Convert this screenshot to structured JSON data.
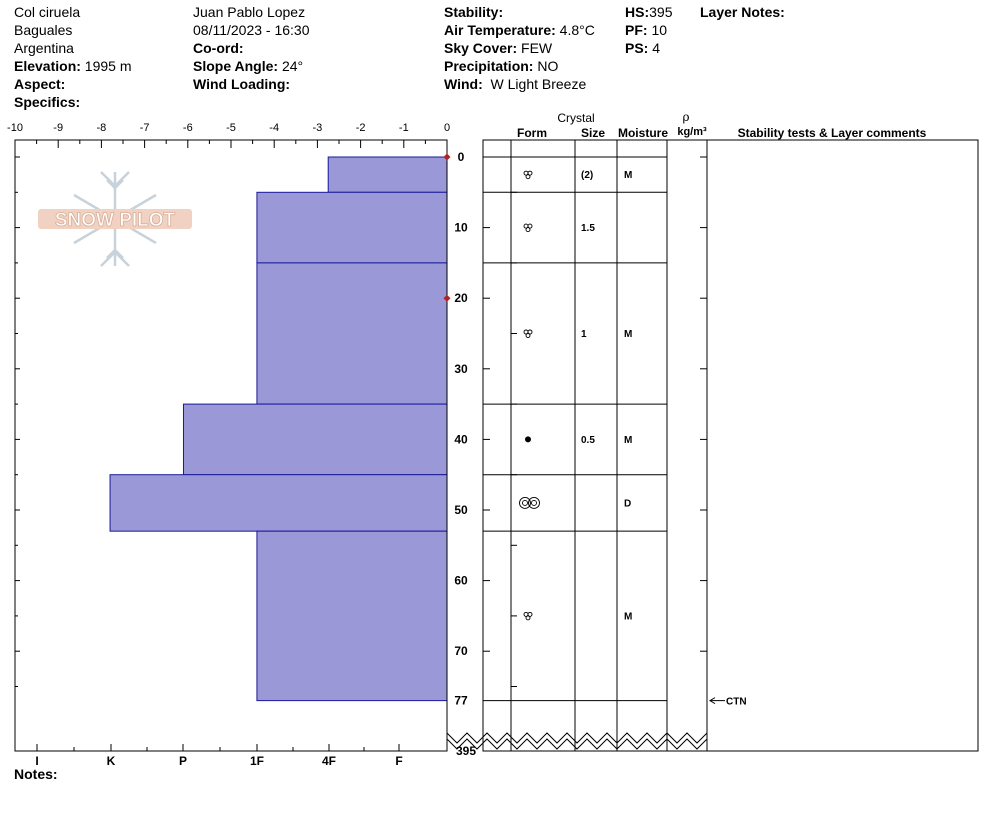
{
  "location": {
    "name": "Col ciruela",
    "region": "Baguales",
    "country": "Argentina",
    "elevation_label": "Elevation:",
    "elevation": "1995 m",
    "aspect_label": "Aspect:",
    "specifics_label": "Specifics:"
  },
  "observer": {
    "name": "Juan Pablo  Lopez",
    "datetime": "08/11/2023 - 16:30",
    "coord_label": "Co-ord:",
    "slope_label": "Slope Angle:",
    "slope": "24°",
    "wind_loading_label": "Wind Loading:"
  },
  "conditions": {
    "stability_label": "Stability:",
    "air_temp_label": "Air Temperature:",
    "air_temp": "4.8°C",
    "sky_label": "Sky Cover:",
    "sky": "FEW",
    "precip_label": "Precipitation:",
    "precip": "NO",
    "wind_label": "Wind:",
    "wind": "W Light Breeze"
  },
  "summary": {
    "hs_label": "HS:",
    "hs": "395",
    "pf_label": "PF:",
    "pf": "10",
    "ps_label": "PS:",
    "ps": "4",
    "layer_notes_label": "Layer Notes:"
  },
  "columns": {
    "crystal": "Crystal",
    "form": "Form",
    "size": "Size",
    "moisture": "Moisture",
    "rho": "ρ",
    "density_unit": "kg/m³",
    "stability": "Stability tests & Layer comments"
  },
  "notes_label": "Notes:",
  "logo_text": "SNOW PILOT",
  "colors": {
    "hardness_fill": "#9a98d6",
    "hardness_stroke": "#1a1a9a",
    "marker": "#b22222"
  },
  "chart_data": {
    "type": "bar",
    "temperature_axis": {
      "ticks": [
        -10,
        -9,
        -8,
        -7,
        -6,
        -5,
        -4,
        -3,
        -2,
        -1,
        0
      ],
      "range": [
        -10,
        0
      ]
    },
    "depth_axis": {
      "ticks": [
        0,
        10,
        20,
        30,
        40,
        50,
        60,
        70
      ],
      "end_label": "77",
      "total_label": "395",
      "range": [
        0,
        77
      ]
    },
    "hardness_labels": [
      "I",
      "K",
      "P",
      "1F",
      "4F",
      "F"
    ],
    "temperature_markers": [
      {
        "depth": 0,
        "temp": 0
      },
      {
        "depth": 20,
        "temp": 0
      }
    ],
    "layers": [
      {
        "top": 0,
        "bottom": 5,
        "hardness": 2.75,
        "form": "graupel",
        "size": "(2)",
        "moisture": "M"
      },
      {
        "top": 5,
        "bottom": 15,
        "hardness": 4.4,
        "form": "graupel",
        "size": "1.5",
        "moisture": ""
      },
      {
        "top": 15,
        "bottom": 35,
        "hardness": 4.4,
        "form": "graupel",
        "size": "1",
        "moisture": "M"
      },
      {
        "top": 35,
        "bottom": 45,
        "hardness": 6.1,
        "form": "dot",
        "size": "0.5",
        "moisture": "M"
      },
      {
        "top": 45,
        "bottom": 53,
        "hardness": 7.8,
        "form": "double",
        "size": "",
        "moisture": "D"
      },
      {
        "top": 53,
        "bottom": 77,
        "hardness": 4.4,
        "form": "graupel",
        "size": "",
        "moisture": "M"
      }
    ],
    "tests": [
      {
        "depth": 77,
        "label": "CTN"
      }
    ]
  }
}
